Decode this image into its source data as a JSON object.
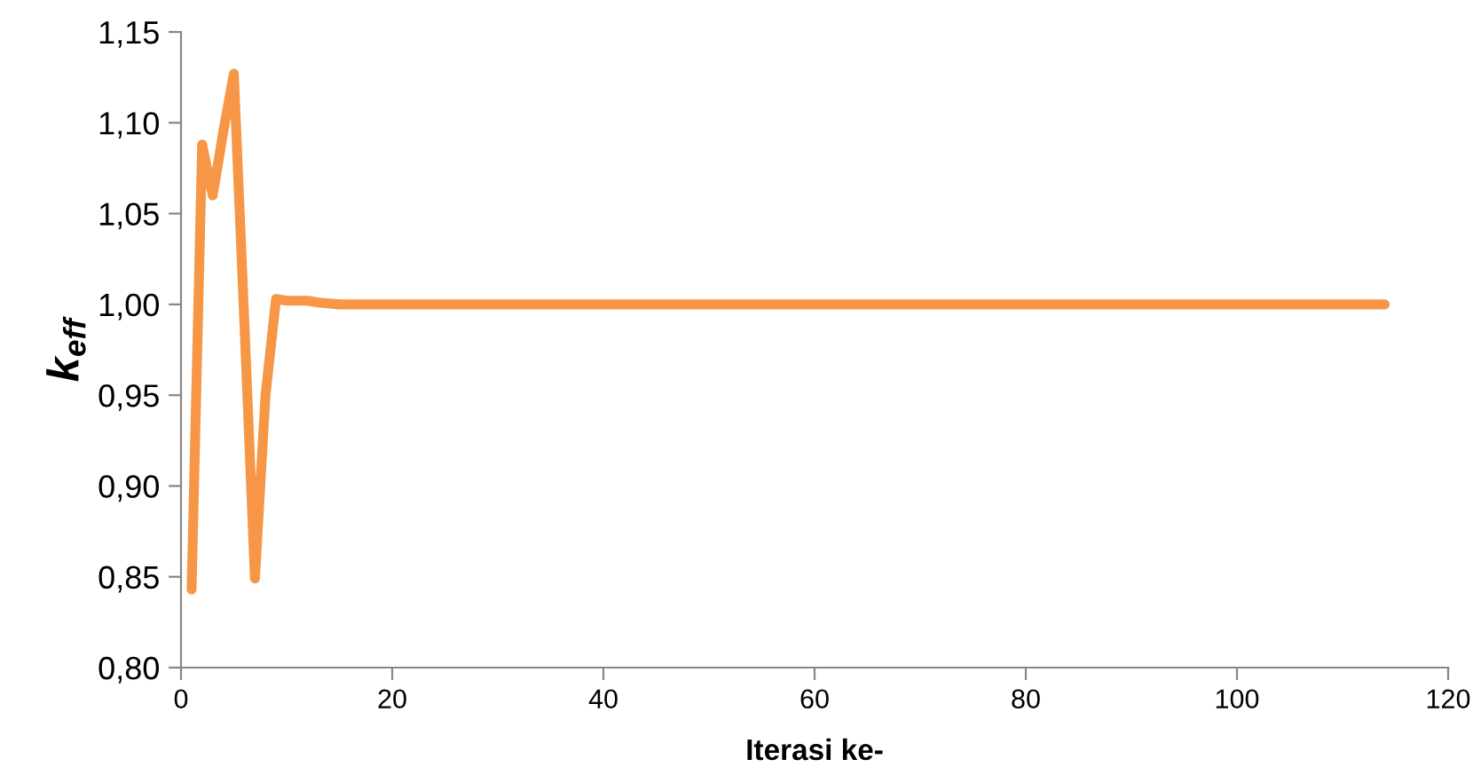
{
  "chart_data": {
    "type": "line",
    "xlabel": "Iterasi ke-",
    "ylabel": "k$_{eff}$",
    "x": [
      1,
      2,
      3,
      4,
      5,
      6,
      7,
      8,
      9,
      10,
      12,
      13,
      15,
      20,
      30,
      50,
      70,
      90,
      114
    ],
    "series": [
      {
        "color": "#f79646",
        "values": [
          0.843,
          1.088,
          1.06,
          1.095,
          1.127,
          0.99,
          0.849,
          0.95,
          1.003,
          1.002,
          1.002,
          1.001,
          1.0,
          1.0,
          1.0,
          1.0,
          1.0,
          1.0,
          1.0
        ]
      }
    ],
    "xlim": [
      0,
      120
    ],
    "xticks": [
      0,
      20,
      40,
      60,
      80,
      100,
      120
    ],
    "ylim": [
      0.8,
      1.15
    ],
    "yticks": [
      {
        "value": 0.8,
        "label": "0,80"
      },
      {
        "value": 0.85,
        "label": "0,85"
      },
      {
        "value": 0.9,
        "label": "0,90"
      },
      {
        "value": 0.95,
        "label": "0,95"
      },
      {
        "value": 1.0,
        "label": "1,00"
      },
      {
        "value": 1.05,
        "label": "1,05"
      },
      {
        "value": 1.1,
        "label": "1,10"
      },
      {
        "value": 1.15,
        "label": "1,15"
      }
    ],
    "grid": false,
    "legend": false,
    "marker": "none",
    "line_style": "solid"
  }
}
